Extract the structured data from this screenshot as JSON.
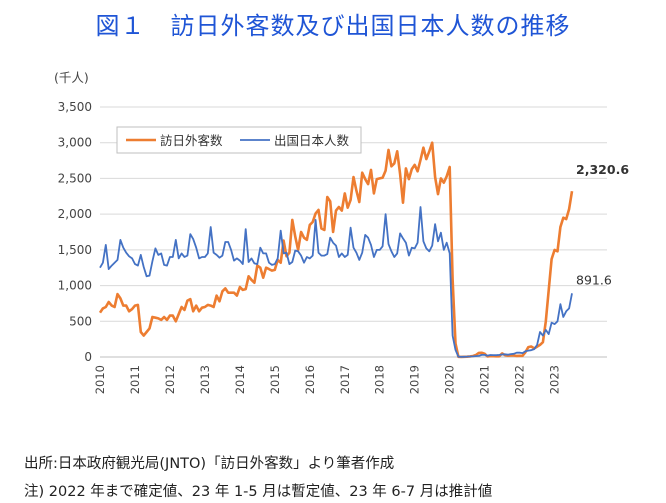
{
  "title": "図１　訪日外客数及び出国日本人数の推移",
  "source": "出所:日本政府観光局(JNTO)「訪日外客数」より筆者作成",
  "footnote": "注) 2022 年まで確定値、23 年 1-5 月は暫定値、23 年 6-7 月は推計値",
  "chart_data": {
    "type": "line",
    "unit_label": "(千人)",
    "ylim": [
      0,
      3500
    ],
    "y_ticks": [
      "0",
      "500",
      "1,000",
      "1,500",
      "2,000",
      "2,500",
      "3,000",
      "3,500"
    ],
    "x_ticks": [
      "2010",
      "2011",
      "2012",
      "2013",
      "2014",
      "2015",
      "2016",
      "2017",
      "2018",
      "2019",
      "2020",
      "2021",
      "2022",
      "2023"
    ],
    "x_start": "2010-01",
    "grid": true,
    "legend_position": "top-left",
    "series": [
      {
        "name": "訪日外客数",
        "color": "#ed7d31",
        "end_label": "2,320.6",
        "values": [
          620,
          680,
          700,
          770,
          720,
          700,
          880,
          820,
          720,
          720,
          640,
          670,
          720,
          730,
          350,
          300,
          350,
          400,
          560,
          550,
          540,
          520,
          560,
          520,
          580,
          580,
          500,
          600,
          700,
          660,
          790,
          810,
          640,
          720,
          640,
          690,
          700,
          730,
          720,
          700,
          860,
          780,
          920,
          960,
          900,
          900,
          900,
          860,
          980,
          940,
          950,
          1130,
          1080,
          1040,
          1280,
          1250,
          1110,
          1250,
          1230,
          1210,
          1220,
          1360,
          1320,
          1630,
          1410,
          1460,
          1920,
          1690,
          1500,
          1750,
          1670,
          1640,
          1850,
          1890,
          2010,
          2060,
          1800,
          1780,
          2240,
          2180,
          1750,
          2050,
          2100,
          2050,
          2290,
          2090,
          2200,
          2520,
          2330,
          2170,
          2580,
          2490,
          2420,
          2620,
          2290,
          2490,
          2500,
          2510,
          2610,
          2900,
          2670,
          2710,
          2880,
          2560,
          2160,
          2640,
          2490,
          2630,
          2690,
          2600,
          2760,
          2930,
          2770,
          2880,
          3000,
          2520,
          2280,
          2500,
          2440,
          2530,
          2660,
          1090,
          190,
          3,
          2,
          3,
          4,
          9,
          14,
          28,
          57,
          59,
          46,
          7,
          12,
          11,
          10,
          10,
          51,
          26,
          18,
          23,
          21,
          15,
          17,
          17,
          66,
          139,
          147,
          120,
          144,
          170,
          207,
          499,
          934,
          1370,
          1500,
          1480,
          1820,
          1950,
          1930,
          2070,
          2321
        ]
      },
      {
        "name": "出国日本人数",
        "color": "#4472c4",
        "end_label": "891.6",
        "values": [
          1250,
          1320,
          1570,
          1230,
          1280,
          1320,
          1360,
          1640,
          1530,
          1460,
          1410,
          1380,
          1300,
          1280,
          1430,
          1260,
          1130,
          1140,
          1340,
          1520,
          1430,
          1450,
          1290,
          1280,
          1400,
          1400,
          1640,
          1380,
          1450,
          1400,
          1420,
          1720,
          1650,
          1530,
          1380,
          1400,
          1400,
          1450,
          1820,
          1460,
          1430,
          1390,
          1420,
          1610,
          1610,
          1500,
          1350,
          1380,
          1350,
          1300,
          1790,
          1330,
          1380,
          1310,
          1300,
          1530,
          1450,
          1450,
          1320,
          1290,
          1300,
          1380,
          1770,
          1450,
          1460,
          1300,
          1330,
          1490,
          1480,
          1420,
          1320,
          1400,
          1380,
          1420,
          1920,
          1460,
          1420,
          1420,
          1440,
          1670,
          1600,
          1560,
          1400,
          1450,
          1400,
          1430,
          1810,
          1530,
          1460,
          1360,
          1460,
          1710,
          1670,
          1570,
          1400,
          1500,
          1500,
          1550,
          2000,
          1580,
          1480,
          1400,
          1450,
          1730,
          1660,
          1600,
          1420,
          1530,
          1520,
          1600,
          2100,
          1620,
          1520,
          1480,
          1560,
          1860,
          1620,
          1740,
          1500,
          1600,
          1450,
          300,
          100,
          4,
          3,
          3,
          5,
          7,
          9,
          12,
          15,
          30,
          30,
          20,
          28,
          26,
          25,
          30,
          35,
          38,
          32,
          40,
          45,
          60,
          60,
          55,
          80,
          90,
          95,
          110,
          170,
          350,
          300,
          380,
          320,
          480,
          460,
          500,
          740,
          560,
          640,
          680,
          892
        ]
      }
    ]
  }
}
